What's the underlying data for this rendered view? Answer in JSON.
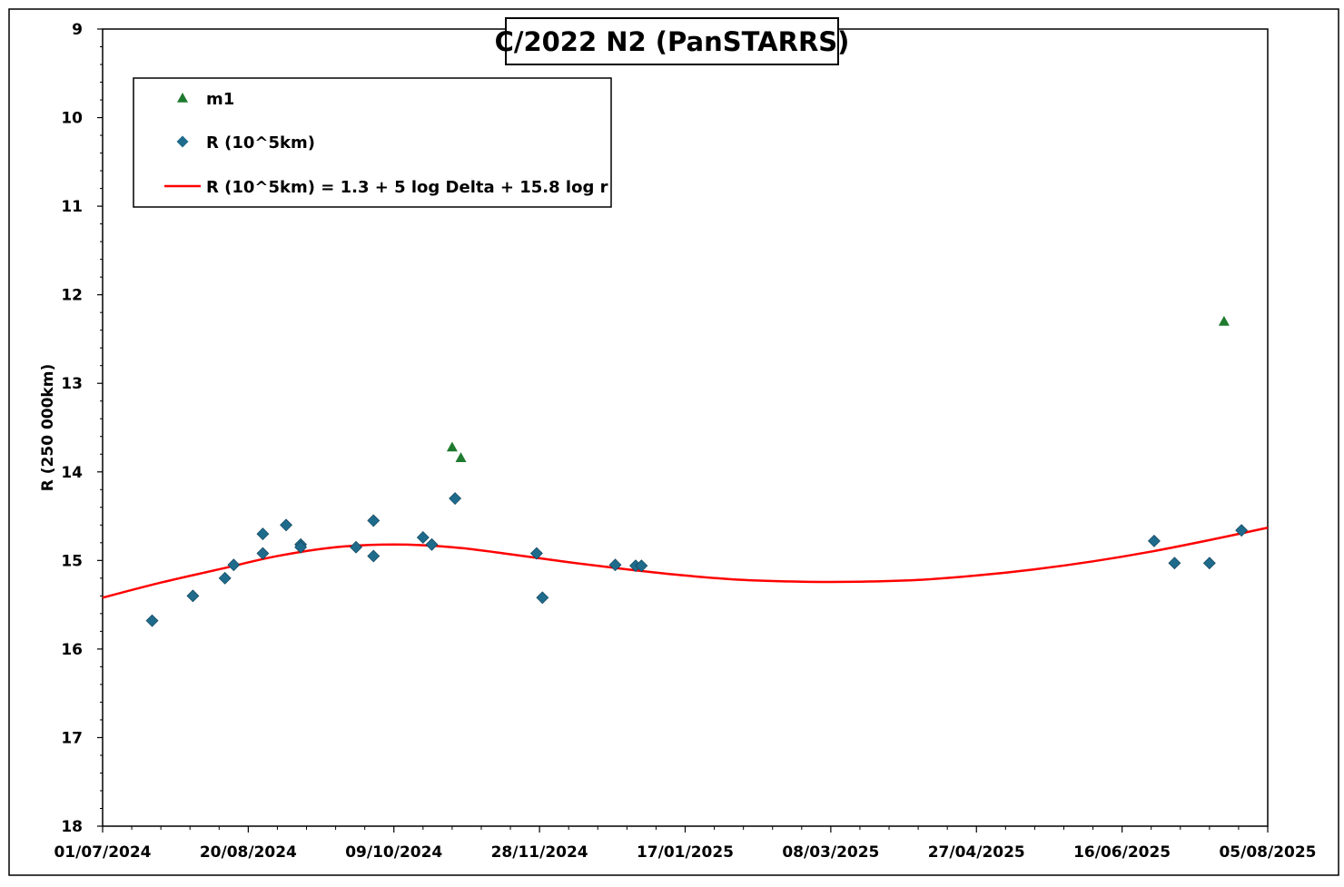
{
  "chart_data": {
    "type": "scatter",
    "title": "C/2022 N2 (PanSTARRS)",
    "xlabel": "",
    "ylabel": "R (250 000km)",
    "x_tick_labels": [
      "01/07/2024",
      "20/08/2024",
      "09/10/2024",
      "28/11/2024",
      "17/01/2025",
      "08/03/2025",
      "27/04/2025",
      "16/06/2025",
      "05/08/2025"
    ],
    "x_range": [
      "2024-07-01",
      "2025-08-05"
    ],
    "y_ticks": [
      9,
      10,
      11,
      12,
      13,
      14,
      15,
      16,
      17,
      18
    ],
    "ylim": [
      9,
      18
    ],
    "y_inverted": true,
    "grid": false,
    "legend_position": "top-left",
    "series": [
      {
        "name": "m1",
        "marker": "triangle",
        "color": "#1e7a2e",
        "points": [
          {
            "x": "2024-10-29",
            "y": 13.72
          },
          {
            "x": "2024-11-01",
            "y": 13.84
          },
          {
            "x": "2025-07-21",
            "y": 12.3
          }
        ]
      },
      {
        "name": "R (10^5km)",
        "marker": "diamond",
        "color": "#1f6b8c",
        "points": [
          {
            "x": "2024-07-18",
            "y": 15.68
          },
          {
            "x": "2024-08-01",
            "y": 15.4
          },
          {
            "x": "2024-08-12",
            "y": 15.2
          },
          {
            "x": "2024-08-15",
            "y": 15.05
          },
          {
            "x": "2024-08-25",
            "y": 14.7
          },
          {
            "x": "2024-08-25",
            "y": 14.92
          },
          {
            "x": "2024-09-02",
            "y": 14.6
          },
          {
            "x": "2024-09-07",
            "y": 14.82
          },
          {
            "x": "2024-09-07",
            "y": 14.85
          },
          {
            "x": "2024-09-26",
            "y": 14.85
          },
          {
            "x": "2024-10-02",
            "y": 14.55
          },
          {
            "x": "2024-10-02",
            "y": 14.95
          },
          {
            "x": "2024-10-19",
            "y": 14.74
          },
          {
            "x": "2024-10-22",
            "y": 14.82
          },
          {
            "x": "2024-10-30",
            "y": 14.3
          },
          {
            "x": "2024-11-27",
            "y": 14.92
          },
          {
            "x": "2024-11-29",
            "y": 15.42
          },
          {
            "x": "2024-12-24",
            "y": 15.05
          },
          {
            "x": "2024-12-31",
            "y": 15.06
          },
          {
            "x": "2025-01-02",
            "y": 15.06
          },
          {
            "x": "2025-06-27",
            "y": 14.78
          },
          {
            "x": "2025-07-04",
            "y": 15.03
          },
          {
            "x": "2025-07-16",
            "y": 15.03
          },
          {
            "x": "2025-07-27",
            "y": 14.66
          }
        ]
      },
      {
        "name": "R (10^5km) = 1.3 + 5 log Delta + 15.8 log r",
        "marker": "line",
        "color": "#ff0000",
        "points": [
          {
            "x": "2024-07-01",
            "y": 15.42
          },
          {
            "x": "2024-07-21",
            "y": 15.25
          },
          {
            "x": "2024-08-10",
            "y": 15.1
          },
          {
            "x": "2024-08-30",
            "y": 14.95
          },
          {
            "x": "2024-09-19",
            "y": 14.85
          },
          {
            "x": "2024-10-09",
            "y": 14.82
          },
          {
            "x": "2024-10-29",
            "y": 14.85
          },
          {
            "x": "2024-11-18",
            "y": 14.93
          },
          {
            "x": "2024-12-08",
            "y": 15.02
          },
          {
            "x": "2024-12-28",
            "y": 15.1
          },
          {
            "x": "2025-01-17",
            "y": 15.17
          },
          {
            "x": "2025-02-06",
            "y": 15.22
          },
          {
            "x": "2025-02-26",
            "y": 15.24
          },
          {
            "x": "2025-03-18",
            "y": 15.24
          },
          {
            "x": "2025-04-07",
            "y": 15.22
          },
          {
            "x": "2025-04-27",
            "y": 15.17
          },
          {
            "x": "2025-05-17",
            "y": 15.1
          },
          {
            "x": "2025-06-06",
            "y": 15.01
          },
          {
            "x": "2025-06-26",
            "y": 14.9
          },
          {
            "x": "2025-07-16",
            "y": 14.77
          },
          {
            "x": "2025-08-05",
            "y": 14.63
          }
        ]
      }
    ]
  }
}
